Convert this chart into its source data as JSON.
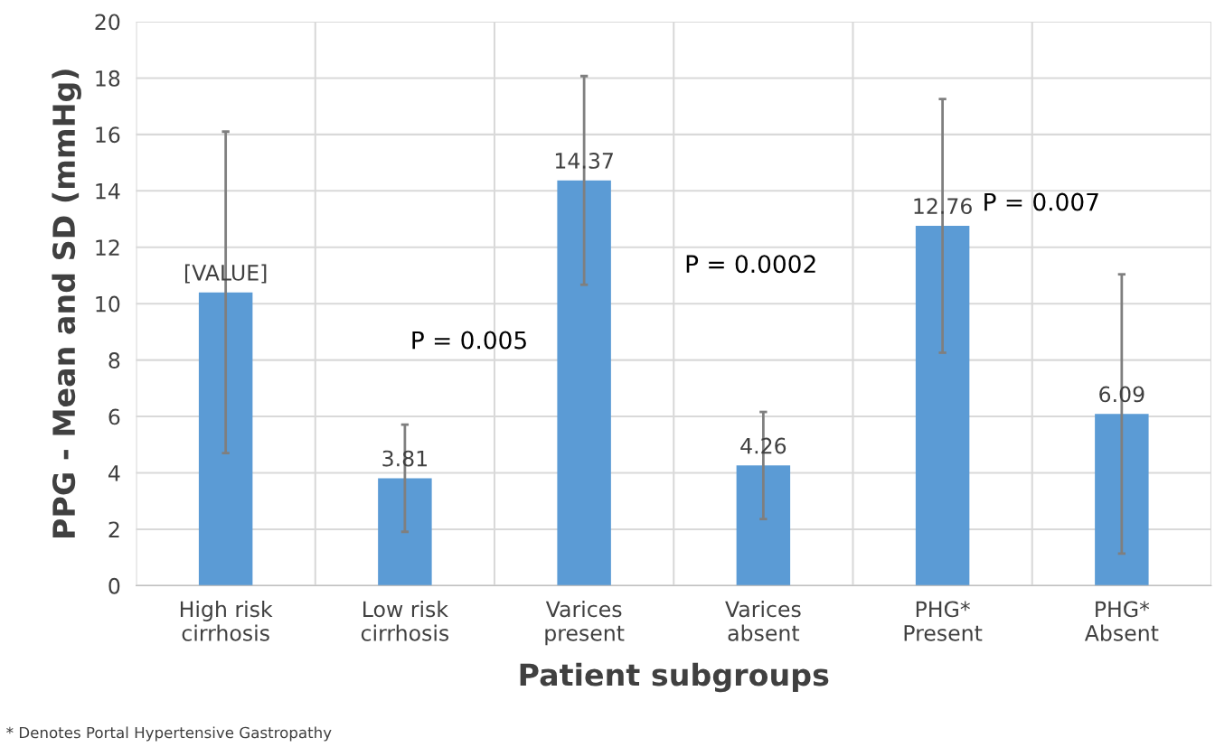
{
  "chart_data": {
    "type": "bar",
    "ylabel": "PPG - Mean and SD (mmHg)",
    "xlabel": "Patient subgroups",
    "categories": [
      "High risk\ncirrhosis",
      "Low risk\ncirrhosis",
      "Varices\npresent",
      "Varices\nabsent",
      "PHG*\nPresent",
      "PHG*\nAbsent"
    ],
    "values": [
      10.4,
      3.81,
      14.37,
      4.26,
      12.76,
      6.09
    ],
    "errors": [
      5.7,
      1.9,
      3.7,
      1.9,
      4.5,
      4.95
    ],
    "value_labels": [
      "[VALUE]",
      "3.81",
      "14.37",
      "4.26",
      "12.76",
      "6.09"
    ],
    "color": "#5b9bd5",
    "ylim": [
      0,
      20
    ],
    "yticks": [
      0,
      2,
      4,
      6,
      8,
      10,
      12,
      14,
      16,
      18,
      20
    ],
    "grid": true,
    "annotations": [
      "P = 0.005",
      "P = 0.0002",
      "P = 0.007",
      "* Denotes Portal Hypertensive Gastropathy"
    ]
  }
}
